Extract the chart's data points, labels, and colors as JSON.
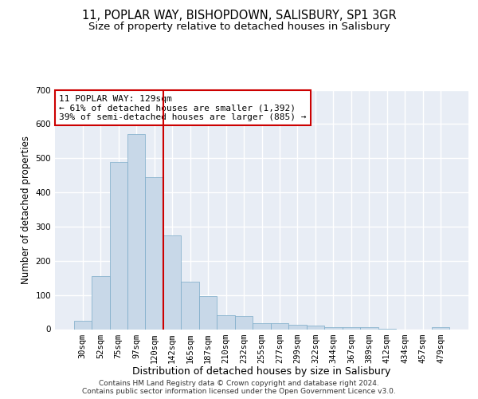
{
  "title_line1": "11, POPLAR WAY, BISHOPDOWN, SALISBURY, SP1 3GR",
  "title_line2": "Size of property relative to detached houses in Salisbury",
  "xlabel": "Distribution of detached houses by size in Salisbury",
  "ylabel": "Number of detached properties",
  "categories": [
    "30sqm",
    "52sqm",
    "75sqm",
    "97sqm",
    "120sqm",
    "142sqm",
    "165sqm",
    "187sqm",
    "210sqm",
    "232sqm",
    "255sqm",
    "277sqm",
    "299sqm",
    "322sqm",
    "344sqm",
    "367sqm",
    "389sqm",
    "412sqm",
    "434sqm",
    "457sqm",
    "479sqm"
  ],
  "values": [
    25,
    155,
    490,
    570,
    445,
    275,
    140,
    97,
    40,
    38,
    18,
    17,
    13,
    10,
    7,
    5,
    5,
    2,
    0,
    0,
    7
  ],
  "bar_color": "#c8d8e8",
  "bar_edge_color": "#7aaac8",
  "annotation_line1": "11 POPLAR WAY: 129sqm",
  "annotation_line2": "← 61% of detached houses are smaller (1,392)",
  "annotation_line3": "39% of semi-detached houses are larger (885) →",
  "annotation_box_color": "#ffffff",
  "annotation_box_edge": "#cc0000",
  "vline_color": "#cc0000",
  "vline_pos": 4.5,
  "ylim": [
    0,
    700
  ],
  "yticks": [
    0,
    100,
    200,
    300,
    400,
    500,
    600,
    700
  ],
  "background_color": "#e8edf5",
  "grid_color": "#ffffff",
  "footer": "Contains HM Land Registry data © Crown copyright and database right 2024.\nContains public sector information licensed under the Open Government Licence v3.0.",
  "title_fontsize": 10.5,
  "subtitle_fontsize": 9.5,
  "tick_fontsize": 7.5,
  "ylabel_fontsize": 8.5,
  "xlabel_fontsize": 9,
  "annotation_fontsize": 8,
  "footer_fontsize": 6.5
}
